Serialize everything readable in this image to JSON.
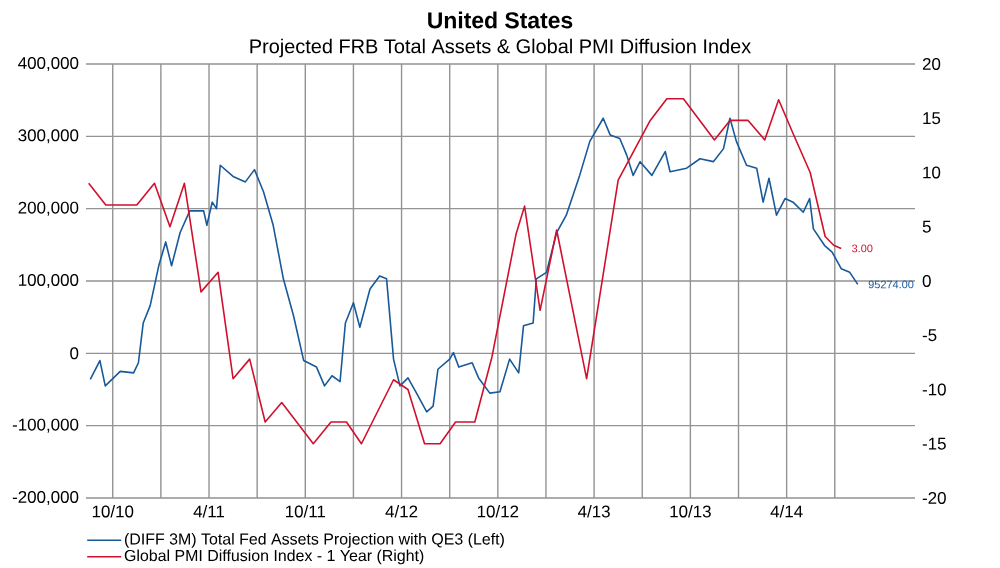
{
  "chart_data": {
    "type": "line",
    "title": "United States",
    "subtitle": "Projected FRB Total Assets & Global PMI Diffusion Index",
    "xlim": [
      "2010-08-11",
      "2014-12-01"
    ],
    "xticks": [
      {
        "value": "2010-10",
        "label": "10/10"
      },
      {
        "value": "2011-01",
        "label": null
      },
      {
        "value": "2011-04",
        "label": "4/11"
      },
      {
        "value": "2011-07",
        "label": null
      },
      {
        "value": "2011-10",
        "label": "10/11"
      },
      {
        "value": "2012-01",
        "label": null
      },
      {
        "value": "2012-04",
        "label": "4/12"
      },
      {
        "value": "2012-07",
        "label": null
      },
      {
        "value": "2012-10",
        "label": "10/12"
      },
      {
        "value": "2013-01",
        "label": null
      },
      {
        "value": "2013-04",
        "label": "4/13"
      },
      {
        "value": "2013-07",
        "label": null
      },
      {
        "value": "2013-10",
        "label": "10/13"
      },
      {
        "value": "2014-01",
        "label": null
      },
      {
        "value": "2014-04",
        "label": "4/14"
      },
      {
        "value": "2014-07",
        "label": null
      }
    ],
    "ylim": [
      -200000,
      400000
    ],
    "yticks": [
      {
        "value": -200000,
        "label": "-200,000"
      },
      {
        "value": -100000,
        "label": "-100,000"
      },
      0,
      {
        "value": 100000,
        "label": "100,000"
      },
      {
        "value": 200000,
        "label": "200,000"
      },
      {
        "value": 300000,
        "label": "300,000"
      },
      {
        "value": 400000,
        "label": "400,000"
      }
    ],
    "y2lim": [
      -20,
      20
    ],
    "y2ticks": [
      -20,
      -15,
      -10,
      -5,
      0,
      5,
      10,
      15,
      20
    ],
    "grid": true,
    "legend": "bottom",
    "series": [
      {
        "name": "(DIFF 3M) Total Fed Assets Projection with QE3  (Left)",
        "color": "#17599b",
        "axis": "y",
        "x": [
          "2010-08-19",
          "2010-09-07",
          "2010-09-17",
          "2010-10-15",
          "2010-11-10",
          "2010-11-19",
          "2010-11-28",
          "2010-12-11",
          "2010-12-27",
          "2011-01-10",
          "2011-01-21",
          "2011-02-07",
          "2011-02-25",
          "2011-03-21",
          "2011-03-27",
          "2011-04-07",
          "2011-04-15",
          "2011-04-22",
          "2011-05-17",
          "2011-06-09",
          "2011-06-26",
          "2011-07-13",
          "2011-08-01",
          "2011-08-20",
          "2011-09-09",
          "2011-09-28",
          "2011-10-22",
          "2011-11-07",
          "2011-11-21",
          "2011-12-06",
          "2011-12-16",
          "2012-01-01",
          "2012-01-13",
          "2012-02-02",
          "2012-02-20",
          "2012-03-03",
          "2012-03-16",
          "2012-03-28",
          "2012-04-13",
          "2012-04-29",
          "2012-05-18",
          "2012-05-30",
          "2012-06-09",
          "2012-07-01",
          "2012-07-08",
          "2012-07-18",
          "2012-08-13",
          "2012-08-25",
          "2012-09-16",
          "2012-10-05",
          "2012-10-23",
          "2012-11-10",
          "2012-11-19",
          "2012-12-07",
          "2012-12-13",
          "2013-01-02",
          "2013-01-21",
          "2013-02-09",
          "2013-03-04",
          "2013-03-23",
          "2013-04-18",
          "2013-05-01",
          "2013-05-19",
          "2013-06-02",
          "2013-06-14",
          "2013-06-27",
          "2013-07-19",
          "2013-08-14",
          "2013-08-23",
          "2013-09-24",
          "2013-10-19",
          "2013-11-14",
          "2013-12-03",
          "2013-12-15",
          "2013-12-27",
          "2014-01-16",
          "2014-02-05",
          "2014-02-17",
          "2014-02-28",
          "2014-03-12",
          "2014-03-28",
          "2014-04-13",
          "2014-05-02",
          "2014-05-14",
          "2014-05-21",
          "2014-06-12",
          "2014-06-26",
          "2014-07-13",
          "2014-07-29",
          "2014-08-14"
        ],
        "values": [
          -36000,
          -10000,
          -45000,
          -25000,
          -27000,
          -13000,
          42000,
          66000,
          121000,
          154000,
          121000,
          167000,
          197000,
          197000,
          177000,
          209000,
          200000,
          260000,
          244000,
          237000,
          254000,
          223000,
          177000,
          103000,
          52000,
          -10000,
          -19000,
          -45000,
          -31000,
          -39000,
          42000,
          70000,
          36000,
          89000,
          107000,
          103000,
          -8000,
          -45000,
          -34000,
          -55000,
          -81000,
          -73000,
          -22000,
          -8000,
          1000,
          -19000,
          -13000,
          -34000,
          -55000,
          -53000,
          -8000,
          -27000,
          38000,
          42000,
          103000,
          112000,
          167000,
          191000,
          246000,
          293000,
          325000,
          302000,
          297000,
          274000,
          246000,
          265000,
          246000,
          279000,
          251000,
          256000,
          269000,
          265000,
          283000,
          325000,
          293000,
          260000,
          256000,
          209000,
          242000,
          191000,
          214000,
          209000,
          195000,
          214000,
          172000,
          149000,
          140000,
          117000,
          112000,
          95274
        ],
        "value_labels": [
          null,
          null,
          null,
          null,
          null,
          null,
          null,
          null,
          null,
          null,
          null,
          null,
          null,
          null,
          null,
          null,
          null,
          null,
          null,
          null,
          null,
          null,
          null,
          null,
          null,
          null,
          null,
          null,
          null,
          null,
          null,
          null,
          null,
          null,
          null,
          null,
          null,
          null,
          null,
          null,
          null,
          null,
          null,
          null,
          null,
          null,
          null,
          null,
          null,
          null,
          null,
          null,
          null,
          null,
          null,
          null,
          null,
          null,
          null,
          null,
          null,
          null,
          null,
          null,
          null,
          null,
          null,
          null,
          null,
          null,
          null,
          null,
          null,
          null,
          null,
          null,
          null,
          null,
          null,
          null,
          null,
          null,
          null,
          null,
          null,
          null,
          null,
          null,
          null,
          "95274.00"
        ]
      },
      {
        "name": "Global PMI Diffusion Index - 1 Year (Right)",
        "color": "#d0102c",
        "axis": "y2",
        "x": [
          "2010-08-16",
          "2010-09-18",
          "2010-11-16",
          "2010-12-19",
          "2011-01-18",
          "2011-02-15",
          "2011-03-16",
          "2011-04-18",
          "2011-05-16",
          "2011-06-17",
          "2011-07-16",
          "2011-08-17",
          "2011-10-16",
          "2011-11-19",
          "2011-12-18",
          "2012-01-16",
          "2012-03-16",
          "2012-04-13",
          "2012-05-14",
          "2012-06-13",
          "2012-07-12",
          "2012-08-18",
          "2012-09-20",
          "2012-11-05",
          "2012-11-21",
          "2012-12-20",
          "2013-01-21",
          "2013-03-17",
          "2013-05-16",
          "2013-07-16",
          "2013-08-17",
          "2013-09-18",
          "2013-11-16",
          "2013-12-15",
          "2014-01-19",
          "2014-02-20",
          "2014-03-16",
          "2014-04-13",
          "2014-05-15",
          "2014-06-13",
          "2014-06-29",
          "2014-07-13"
        ],
        "values": [
          9,
          7,
          7,
          9,
          5,
          9,
          -1,
          0.8,
          -9,
          -7.2,
          -13,
          -11.2,
          -15,
          -13,
          -13,
          -15,
          -9.1,
          -10,
          -15,
          -15,
          -13,
          -13,
          -7,
          4.3,
          6.9,
          -2.7,
          4.7,
          -9,
          9.3,
          14.8,
          16.8,
          16.8,
          13,
          14.8,
          14.8,
          13,
          16.7,
          13.6,
          10,
          4.1,
          3.3,
          3
        ],
        "value_labels": [
          null,
          null,
          null,
          null,
          null,
          null,
          null,
          null,
          null,
          null,
          null,
          null,
          null,
          null,
          null,
          null,
          null,
          null,
          null,
          null,
          null,
          null,
          null,
          null,
          null,
          null,
          null,
          null,
          null,
          null,
          null,
          null,
          null,
          null,
          null,
          null,
          null,
          null,
          null,
          null,
          null,
          "3.00"
        ]
      }
    ]
  }
}
